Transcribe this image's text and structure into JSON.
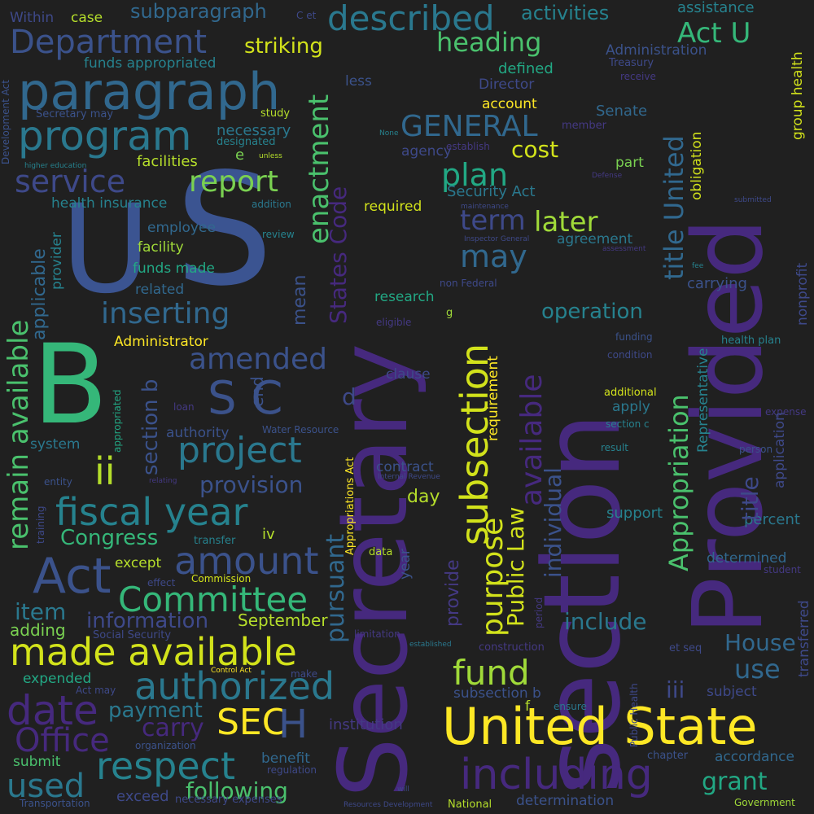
{
  "palette": {
    "background": "#202020"
  },
  "words": [
    {
      "t": "Secretary",
      "c": "#46297e"
    },
    {
      "t": "section",
      "c": "#46297e"
    },
    {
      "t": "Provided",
      "c": "#46297e"
    },
    {
      "t": "U",
      "c": "#3b5491"
    },
    {
      "t": "S",
      "c": "#3b5491"
    },
    {
      "t": "B",
      "c": "#35b779"
    },
    {
      "t": "United State",
      "c": "#fde725"
    },
    {
      "t": "paragraph",
      "c": "#31688e"
    },
    {
      "t": "program",
      "c": "#2a788e"
    },
    {
      "t": "Department",
      "c": "#3b528b"
    },
    {
      "t": "described",
      "c": "#2a788e"
    },
    {
      "t": "heading",
      "c": "#4ac16d"
    },
    {
      "t": "Act U",
      "c": "#35b779"
    },
    {
      "t": "service",
      "c": "#3e4989"
    },
    {
      "t": "report",
      "c": "#7ad151"
    },
    {
      "t": "plan",
      "c": "#22a884"
    },
    {
      "t": "GENERAL",
      "c": "#31688e"
    },
    {
      "t": "term",
      "c": "#3e4989"
    },
    {
      "t": "later",
      "c": "#a0da39"
    },
    {
      "t": "cost",
      "c": "#d2e21b"
    },
    {
      "t": "may",
      "c": "#31688e"
    },
    {
      "t": "inserting",
      "c": "#31688e"
    },
    {
      "t": "amended",
      "c": "#3b528b"
    },
    {
      "t": "S C",
      "c": "#3b528b"
    },
    {
      "t": "project",
      "c": "#2a788e"
    },
    {
      "t": "ii",
      "c": "#b5de2b"
    },
    {
      "t": "fiscal year",
      "c": "#26828e"
    },
    {
      "t": "amount",
      "c": "#3b528b"
    },
    {
      "t": "Act",
      "c": "#3b528b"
    },
    {
      "t": "Committee",
      "c": "#35b779"
    },
    {
      "t": "made available",
      "c": "#d2e21b"
    },
    {
      "t": "authorized",
      "c": "#2a788e"
    },
    {
      "t": "date",
      "c": "#46297e"
    },
    {
      "t": "Office",
      "c": "#46297e"
    },
    {
      "t": "SEC",
      "c": "#fde725"
    },
    {
      "t": "H",
      "c": "#3b528b"
    },
    {
      "t": "respect",
      "c": "#26828e"
    },
    {
      "t": "used",
      "c": "#2a788e"
    },
    {
      "t": "including",
      "c": "#46297e"
    },
    {
      "t": "fund",
      "c": "#a0da39"
    },
    {
      "t": "grant",
      "c": "#22a884"
    },
    {
      "t": "House",
      "c": "#31688e"
    },
    {
      "t": "use",
      "c": "#31688e"
    },
    {
      "t": "operation",
      "c": "#26828e"
    },
    {
      "t": "include",
      "c": "#2a788e"
    },
    {
      "t": "iii",
      "c": "#3e4989"
    },
    {
      "t": "Congress",
      "c": "#35b779"
    },
    {
      "t": "provision",
      "c": "#3b528b"
    },
    {
      "t": "payment",
      "c": "#2a788e"
    },
    {
      "t": "carry",
      "c": "#46297e"
    },
    {
      "t": "following",
      "c": "#4ac16d"
    },
    {
      "t": "item",
      "c": "#2a788e"
    },
    {
      "t": "information",
      "c": "#3e4989"
    },
    {
      "t": "September",
      "c": "#b5de2b"
    },
    {
      "t": "adding",
      "c": "#7ad151"
    },
    {
      "t": "expended",
      "c": "#22a884"
    },
    {
      "t": "submit",
      "c": "#4ac16d"
    },
    {
      "t": "exceed",
      "c": "#3e4989"
    },
    {
      "t": "striking",
      "c": "#d2e21b"
    },
    {
      "t": "activities",
      "c": "#26828e"
    },
    {
      "t": "subparagraph",
      "c": "#31688e"
    },
    {
      "t": "case",
      "c": "#b5de2b"
    },
    {
      "t": "Within",
      "c": "#3e4989"
    },
    {
      "t": "funds appropriated",
      "c": "#26828e"
    },
    {
      "t": "assistance",
      "c": "#26828e"
    },
    {
      "t": "Administration",
      "c": "#3b528b"
    },
    {
      "t": "Treasury",
      "c": "#3e4989"
    },
    {
      "t": "defined",
      "c": "#22a884"
    },
    {
      "t": "Director",
      "c": "#3e4989"
    },
    {
      "t": "account",
      "c": "#fde725"
    },
    {
      "t": "Senate",
      "c": "#31688e"
    },
    {
      "t": "less",
      "c": "#3b528b"
    },
    {
      "t": "receive",
      "c": "#443983"
    },
    {
      "t": "study",
      "c": "#b5de2b"
    },
    {
      "t": "Secretary may",
      "c": "#3b528b"
    },
    {
      "t": "necessary",
      "c": "#2a788e"
    },
    {
      "t": "designated",
      "c": "#26828e"
    },
    {
      "t": "facilities",
      "c": "#b5de2b"
    },
    {
      "t": "health insurance",
      "c": "#26828e"
    },
    {
      "t": "employee",
      "c": "#31688e"
    },
    {
      "t": "facility",
      "c": "#a0da39"
    },
    {
      "t": "funds made",
      "c": "#22a884"
    },
    {
      "t": "related",
      "c": "#31688e"
    },
    {
      "t": "Administrator",
      "c": "#fde725"
    },
    {
      "t": "agency",
      "c": "#3e4989"
    },
    {
      "t": "member",
      "c": "#443983"
    },
    {
      "t": "establish",
      "c": "#443983"
    },
    {
      "t": "Security Act",
      "c": "#2a788e"
    },
    {
      "t": "required",
      "c": "#d2e21b"
    },
    {
      "t": "maintenance",
      "c": "#3e4989"
    },
    {
      "t": "agreement",
      "c": "#2a788e"
    },
    {
      "t": "part",
      "c": "#7ad151"
    },
    {
      "t": "Inspector General",
      "c": "#3e4989"
    },
    {
      "t": "assessment",
      "c": "#443983"
    },
    {
      "t": "review",
      "c": "#26828e"
    },
    {
      "t": "addition",
      "c": "#2a788e"
    },
    {
      "t": "carrying",
      "c": "#3b528b"
    },
    {
      "t": "research",
      "c": "#22a884"
    },
    {
      "t": "non Federal",
      "c": "#3e4989"
    },
    {
      "t": "g",
      "c": "#a0da39"
    },
    {
      "t": "eligible",
      "c": "#443983"
    },
    {
      "t": "funding",
      "c": "#3b528b"
    },
    {
      "t": "condition",
      "c": "#3e4989"
    },
    {
      "t": "health plan",
      "c": "#26828e"
    },
    {
      "t": "authority",
      "c": "#3b528b"
    },
    {
      "t": "Water Resource",
      "c": "#3b528b"
    },
    {
      "t": "system",
      "c": "#2a788e"
    },
    {
      "t": "entity",
      "c": "#3b528b"
    },
    {
      "t": "relating",
      "c": "#443983"
    },
    {
      "t": "clause",
      "c": "#3e4989"
    },
    {
      "t": "additional",
      "c": "#d2e21b"
    },
    {
      "t": "apply",
      "c": "#2a788e"
    },
    {
      "t": "section c",
      "c": "#26828e"
    },
    {
      "t": "result",
      "c": "#26828e"
    },
    {
      "t": "person",
      "c": "#3b528b"
    },
    {
      "t": "expense",
      "c": "#443983"
    },
    {
      "t": "loan",
      "c": "#443983"
    },
    {
      "t": "contract",
      "c": "#3b528b"
    },
    {
      "t": "Internal Revenue",
      "c": "#3e4989"
    },
    {
      "t": "day",
      "c": "#b5de2b"
    },
    {
      "t": "support",
      "c": "#26828e"
    },
    {
      "t": "percent",
      "c": "#2a788e"
    },
    {
      "t": "transfer",
      "c": "#26828e"
    },
    {
      "t": "iv",
      "c": "#b5de2b"
    },
    {
      "t": "data",
      "c": "#b5de2b"
    },
    {
      "t": "except",
      "c": "#b5de2b"
    },
    {
      "t": "effect",
      "c": "#3e4989"
    },
    {
      "t": "Commission",
      "c": "#d2e21b"
    },
    {
      "t": "determined",
      "c": "#31688e"
    },
    {
      "t": "student",
      "c": "#443983"
    },
    {
      "t": "Social Security",
      "c": "#3e4989"
    },
    {
      "t": "limitation",
      "c": "#443983"
    },
    {
      "t": "established",
      "c": "#2a788e"
    },
    {
      "t": "construction",
      "c": "#443983"
    },
    {
      "t": "et seq",
      "c": "#3e4989"
    },
    {
      "t": "Control Act",
      "c": "#fde725"
    },
    {
      "t": "make",
      "c": "#3e4989"
    },
    {
      "t": "Act may",
      "c": "#3e4989"
    },
    {
      "t": "subsection b",
      "c": "#3b528b"
    },
    {
      "t": "f",
      "c": "#b5de2b"
    },
    {
      "t": "ensure",
      "c": "#2a788e"
    },
    {
      "t": "subject",
      "c": "#3e4989"
    },
    {
      "t": "institution",
      "c": "#443983"
    },
    {
      "t": "organization",
      "c": "#3b528b"
    },
    {
      "t": "benefit",
      "c": "#31688e"
    },
    {
      "t": "regulation",
      "c": "#3e4989"
    },
    {
      "t": "chapter",
      "c": "#3b528b"
    },
    {
      "t": "accordance",
      "c": "#31688e"
    },
    {
      "t": "will",
      "c": "#3e4989"
    },
    {
      "t": "necessary expenses",
      "c": "#3e4989"
    },
    {
      "t": "Transportation",
      "c": "#3b528b"
    },
    {
      "t": "Resources Development",
      "c": "#3e4989"
    },
    {
      "t": "National",
      "c": "#b5de2b"
    },
    {
      "t": "determination",
      "c": "#3b528b"
    },
    {
      "t": "Government",
      "c": "#a0da39"
    },
    {
      "t": "unless",
      "c": "#b5de2b"
    },
    {
      "t": "higher education",
      "c": "#26828e"
    },
    {
      "t": "C et",
      "c": "#3e4989"
    },
    {
      "t": "None",
      "c": "#26828e"
    },
    {
      "t": "Defense",
      "c": "#443983"
    },
    {
      "t": "submitted",
      "c": "#3e4989"
    },
    {
      "t": "fee",
      "c": "#26828e"
    },
    {
      "t": "e",
      "c": "#7ad151"
    },
    {
      "t": "d",
      "c": "#3e4989"
    },
    {
      "t": "end",
      "c": "#3b528b"
    },
    {
      "t": "mean",
      "c": "#3b528b"
    },
    {
      "t": "States Code",
      "c": "#46297e"
    },
    {
      "t": "enactment",
      "c": "#4ac16d"
    },
    {
      "t": "subsection",
      "c": "#d2e21b"
    },
    {
      "t": "purpose",
      "c": "#d2e21b"
    },
    {
      "t": "pursuant",
      "c": "#31688e"
    },
    {
      "t": "Public Law",
      "c": "#d2e21b"
    },
    {
      "t": "requirement",
      "c": "#fde725"
    },
    {
      "t": "available",
      "c": "#46297e"
    },
    {
      "t": "individual",
      "c": "#3b528b"
    },
    {
      "t": "provide",
      "c": "#443983"
    },
    {
      "t": "title United",
      "c": "#31688e"
    },
    {
      "t": "obligation",
      "c": "#d2e21b"
    },
    {
      "t": "Appropriation",
      "c": "#4ac16d"
    },
    {
      "t": "Representative",
      "c": "#26828e"
    },
    {
      "t": "application",
      "c": "#3e4989"
    },
    {
      "t": "group health",
      "c": "#d2e21b"
    },
    {
      "t": "nonprofit",
      "c": "#3e4989"
    },
    {
      "t": "title",
      "c": "#3e4989"
    },
    {
      "t": "transferred",
      "c": "#3e4989"
    },
    {
      "t": "Public Health",
      "c": "#3e4989"
    },
    {
      "t": "period",
      "c": "#443983"
    },
    {
      "t": "year",
      "c": "#3b528b"
    },
    {
      "t": "Appropriations Act",
      "c": "#fde725"
    },
    {
      "t": "section b",
      "c": "#3b528b"
    },
    {
      "t": "remain available",
      "c": "#4ac16d"
    },
    {
      "t": "applicable",
      "c": "#31688e"
    },
    {
      "t": "provider",
      "c": "#26828e"
    },
    {
      "t": "appropriated",
      "c": "#22a884"
    },
    {
      "t": "training",
      "c": "#3e4989"
    },
    {
      "t": "Development Act",
      "c": "#3b528b"
    }
  ]
}
